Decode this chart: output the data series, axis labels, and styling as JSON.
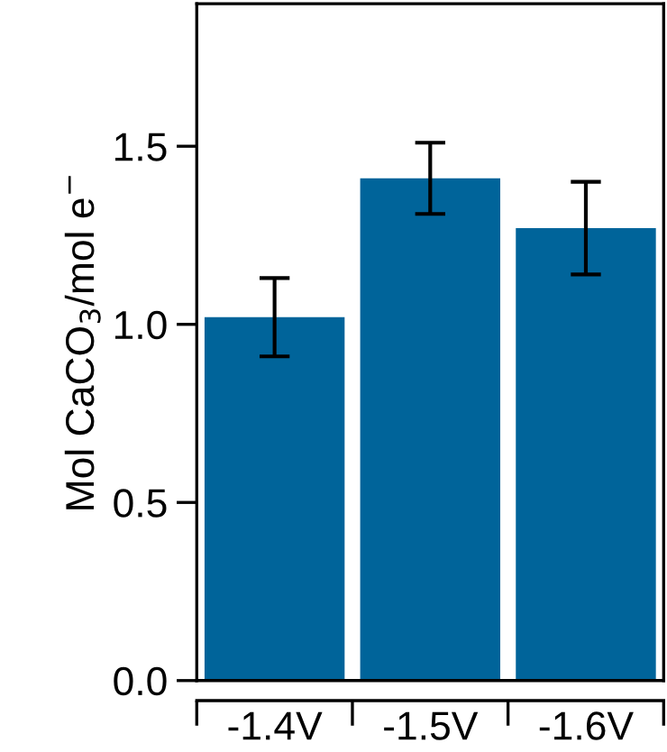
{
  "chart_data": {
    "type": "bar",
    "ylabel": "Mol CaCO$_{3}$/mol e$^{−}$",
    "categories": [
      "-1.4V",
      "-1.5V",
      "-1.6V"
    ],
    "values": [
      1.02,
      1.41,
      1.27
    ],
    "errors": [
      0.11,
      0.1,
      0.13
    ],
    "color": "#00649a",
    "ylim": [
      0,
      1.9
    ],
    "yticks": [
      {
        "value": 0,
        "label": "0.0"
      },
      {
        "value": 0.5,
        "label": "0.5"
      },
      {
        "value": 1.0,
        "label": "1.0"
      },
      {
        "value": 1.5,
        "label": "1.5"
      }
    ],
    "grid": false,
    "legend": false
  }
}
